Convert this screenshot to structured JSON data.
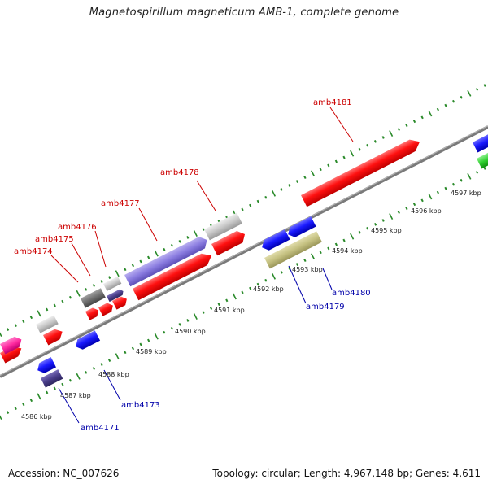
{
  "title": "Magnetospirillum magneticum AMB-1, complete genome",
  "accession": "Accession: NC_007626",
  "topology": "Topology: circular; Length: 4,967,148 bp; Genes: 4,611",
  "scale_ticks": [
    "4586 kbp",
    "4587 kbp",
    "4588 kbp",
    "4589 kbp",
    "4590 kbp",
    "4591 kbp",
    "4592 kbp",
    "4593 kbp",
    "4594 kbp",
    "4595 kbp",
    "4596 kbp",
    "4597 kbp"
  ],
  "colors": {
    "forward_label": "#cc0000",
    "reverse_label": "#0000aa",
    "red_gene": "#ff1010",
    "blue_gene": "#1a1aff",
    "grey_gene": "#c8c8c8",
    "dark_grey_gene": "#707070",
    "purple_gene": "#8a7ce0",
    "dark_purple_gene": "#4a3e8a",
    "olive_gene": "#c4c080",
    "pink_gene": "#ff2aa0",
    "green_gene": "#30d030",
    "backbone": "#7a7a7a",
    "tick_green": "#2a8a2a"
  },
  "forward_genes": [
    "amb4174",
    "amb4175",
    "amb4176",
    "amb4177",
    "amb4178",
    "amb4181"
  ],
  "reverse_genes": [
    "amb4171",
    "amb4173",
    "amb4179",
    "amb4180"
  ]
}
